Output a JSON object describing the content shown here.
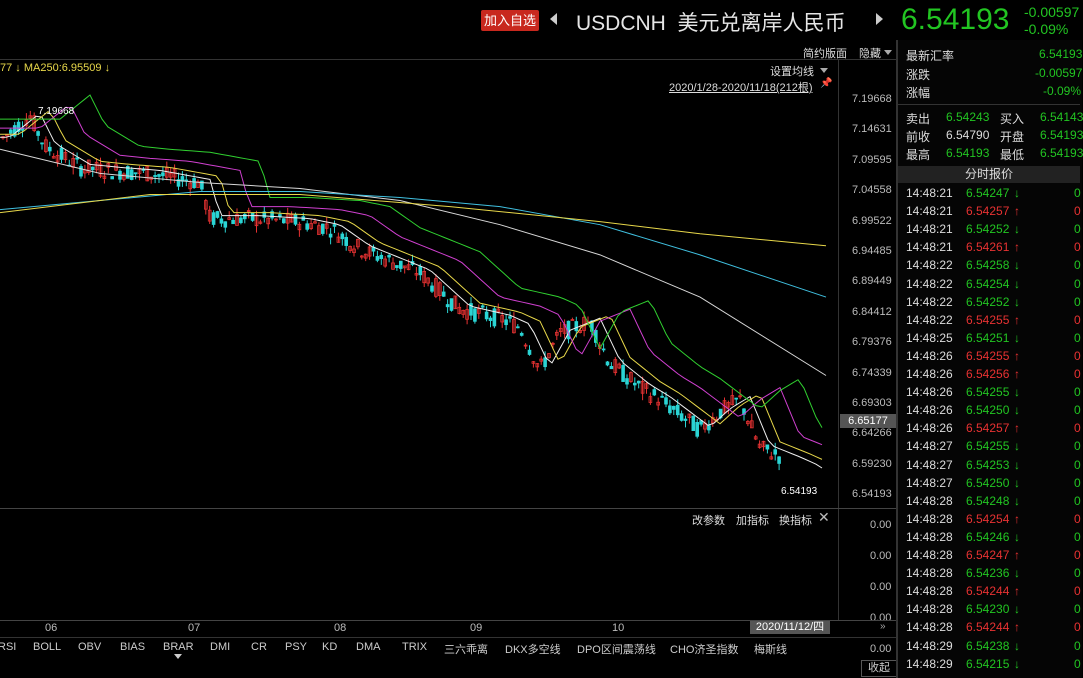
{
  "header": {
    "add_watch": "加入自选",
    "symbol": "USDCNH",
    "symbol_name": "美元兑离岸人民币",
    "price": "6.54193",
    "change": "-0.00597",
    "change_pct": "-0.09%"
  },
  "chart_controls": {
    "ma_label": "77 ↓ MA250:6.95509 ↓",
    "simple_layout": "简约版面",
    "hide": "隐藏",
    "set_ma": "设置均线",
    "date_range": "2020/1/28-2020/11/18(212根)",
    "high_marker": "7.19668",
    "last_marker": "6.54193"
  },
  "chart_data": {
    "type": "candlestick",
    "y_ticks": [
      "7.19668",
      "7.14631",
      "7.09595",
      "7.04558",
      "6.99522",
      "6.94485",
      "6.89449",
      "6.84412",
      "6.79376",
      "6.74339",
      "6.69303",
      "6.64266",
      "6.59230",
      "6.54193"
    ],
    "current_price": "6.65177",
    "x_ticks": [
      "06",
      "07",
      "08",
      "09",
      "10"
    ],
    "indicator_ticks": [
      "0.00",
      "0.00",
      "0.00",
      "0.00",
      "0.00"
    ],
    "crosshair_date": "2020/11/12/四"
  },
  "indicator": {
    "change_params": "改参数",
    "add_indicator": "加指标",
    "switch_indicator": "换指标"
  },
  "tabs": [
    "RSI",
    "BOLL",
    "OBV",
    "BIAS",
    "BRAR",
    "DMI",
    "CR",
    "PSY",
    "KD",
    "DMA",
    "TRIX",
    "三六乖离",
    "DKX多空线",
    "DPO区间震荡线",
    "CHO济圣指数",
    "梅斯线"
  ],
  "collapse": "收起",
  "panel": {
    "latest_label": "最新汇率",
    "latest_value": "6.54193",
    "change_label": "涨跌",
    "change_value": "-0.00597",
    "pct_label": "涨幅",
    "pct_value": "-0.09%",
    "sell_label": "卖出",
    "sell_value": "6.54243",
    "buy_label": "买入",
    "buy_value": "6.54143",
    "prev_label": "前收",
    "prev_value": "6.54790",
    "open_label": "开盘",
    "open_value": "6.54193",
    "high_label": "最高",
    "high_value": "6.54193",
    "low_label": "最低",
    "low_value": "6.54193",
    "ticks_title": "分时报价"
  },
  "ticks": [
    {
      "time": "14:48:21",
      "price": "6.54247",
      "dir": "↓",
      "color": "green"
    },
    {
      "time": "14:48:21",
      "price": "6.54257",
      "dir": "↑",
      "color": "red"
    },
    {
      "time": "14:48:21",
      "price": "6.54252",
      "dir": "↓",
      "color": "green"
    },
    {
      "time": "14:48:21",
      "price": "6.54261",
      "dir": "↑",
      "color": "red"
    },
    {
      "time": "14:48:22",
      "price": "6.54258",
      "dir": "↓",
      "color": "green"
    },
    {
      "time": "14:48:22",
      "price": "6.54254",
      "dir": "↓",
      "color": "green"
    },
    {
      "time": "14:48:22",
      "price": "6.54252",
      "dir": "↓",
      "color": "green"
    },
    {
      "time": "14:48:22",
      "price": "6.54255",
      "dir": "↑",
      "color": "red"
    },
    {
      "time": "14:48:25",
      "price": "6.54251",
      "dir": "↓",
      "color": "green"
    },
    {
      "time": "14:48:26",
      "price": "6.54255",
      "dir": "↑",
      "color": "red"
    },
    {
      "time": "14:48:26",
      "price": "6.54256",
      "dir": "↑",
      "color": "red"
    },
    {
      "time": "14:48:26",
      "price": "6.54255",
      "dir": "↓",
      "color": "green"
    },
    {
      "time": "14:48:26",
      "price": "6.54250",
      "dir": "↓",
      "color": "green"
    },
    {
      "time": "14:48:26",
      "price": "6.54257",
      "dir": "↑",
      "color": "red"
    },
    {
      "time": "14:48:27",
      "price": "6.54255",
      "dir": "↓",
      "color": "green"
    },
    {
      "time": "14:48:27",
      "price": "6.54253",
      "dir": "↓",
      "color": "green"
    },
    {
      "time": "14:48:27",
      "price": "6.54250",
      "dir": "↓",
      "color": "green"
    },
    {
      "time": "14:48:28",
      "price": "6.54248",
      "dir": "↓",
      "color": "green"
    },
    {
      "time": "14:48:28",
      "price": "6.54254",
      "dir": "↑",
      "color": "red"
    },
    {
      "time": "14:48:28",
      "price": "6.54246",
      "dir": "↓",
      "color": "green"
    },
    {
      "time": "14:48:28",
      "price": "6.54247",
      "dir": "↑",
      "color": "red"
    },
    {
      "time": "14:48:28",
      "price": "6.54236",
      "dir": "↓",
      "color": "green"
    },
    {
      "time": "14:48:28",
      "price": "6.54244",
      "dir": "↑",
      "color": "red"
    },
    {
      "time": "14:48:28",
      "price": "6.54230",
      "dir": "↓",
      "color": "green"
    },
    {
      "time": "14:48:28",
      "price": "6.54244",
      "dir": "↑",
      "color": "red"
    },
    {
      "time": "14:48:29",
      "price": "6.54238",
      "dir": "↓",
      "color": "green"
    },
    {
      "time": "14:48:29",
      "price": "6.54215",
      "dir": "↓",
      "color": "green"
    }
  ],
  "colors": {
    "up": "#e83232",
    "down": "#22c522",
    "accent": "#c8281e"
  }
}
